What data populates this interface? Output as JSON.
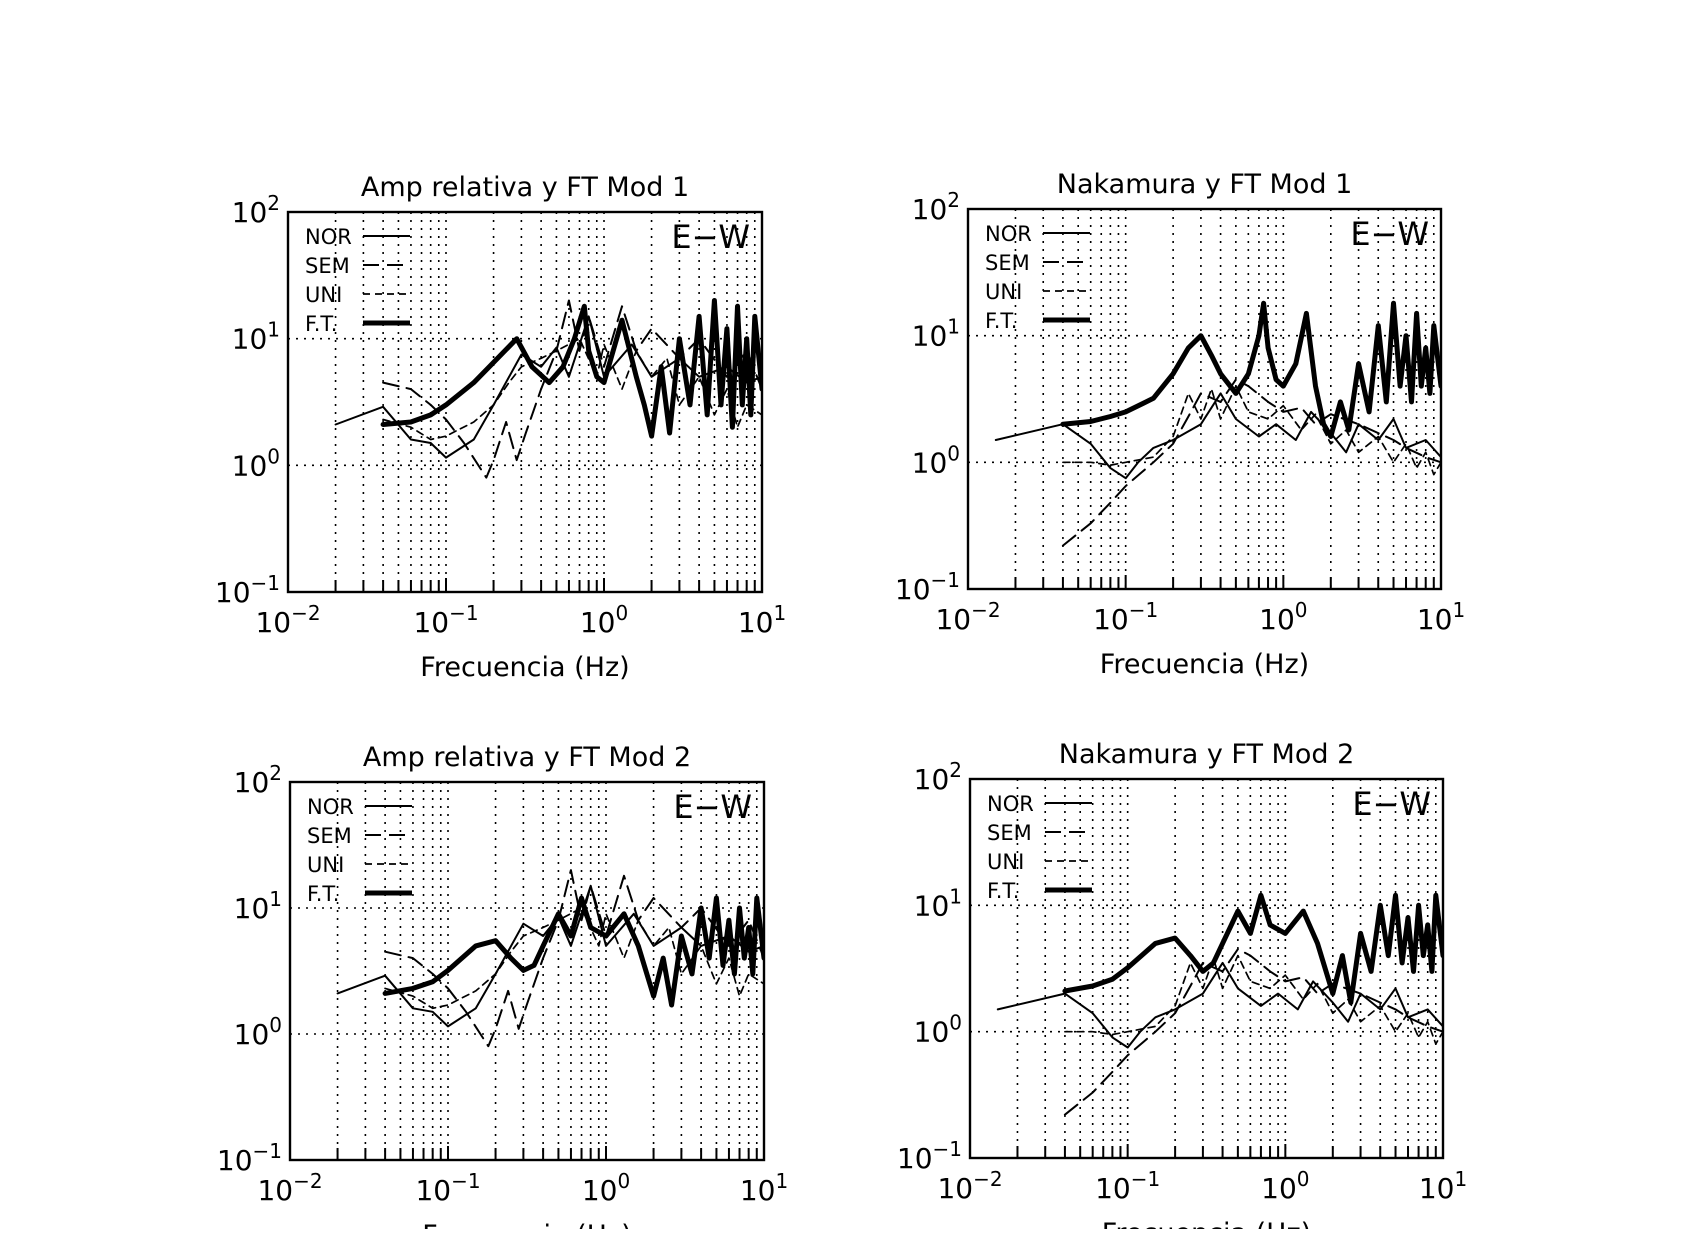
{
  "figure": {
    "charts": [
      {
        "id": "p1",
        "title": "Amp  relativa  y  FT  Mod  1",
        "tag": "E−W"
      },
      {
        "id": "p2",
        "title": "Nakamura  y  FT  Mod  1",
        "tag": "E−W"
      },
      {
        "id": "p3",
        "title": "Amp  relativa  y  FT  Mod  2",
        "tag": "E−W"
      },
      {
        "id": "p4",
        "title": "Nakamura  y  FT  Mod  2",
        "tag": "E−W"
      }
    ],
    "xlabel": "Frecuencia  (Hz)",
    "x_tick_labels": [
      {
        "base": "10",
        "exp": "−2"
      },
      {
        "base": "10",
        "exp": "−1"
      },
      {
        "base": "10",
        "exp": "0"
      },
      {
        "base": "10",
        "exp": "1"
      }
    ],
    "y_tick_labels": [
      {
        "base": "10",
        "exp": "−1"
      },
      {
        "base": "10",
        "exp": "0"
      },
      {
        "base": "10",
        "exp": "1"
      },
      {
        "base": "10",
        "exp": "2"
      }
    ],
    "legend": [
      {
        "label": "NOR",
        "style": "solid-thin"
      },
      {
        "label": "SEM",
        "style": "long-dash"
      },
      {
        "label": "UNI",
        "style": "short-dash"
      },
      {
        "label": "F.T.",
        "style": "solid-thick"
      }
    ]
  },
  "chart_data": [
    {
      "type": "line",
      "title": "Amp  relativa  y  FT  Mod  1",
      "xlabel": "Frecuencia  (Hz)",
      "ylabel": "",
      "xscale": "log",
      "yscale": "log",
      "xlim": [
        0.01,
        10
      ],
      "ylim": [
        0.1,
        100
      ],
      "grid": true,
      "legend_position": "top-left",
      "annotation": "E−W",
      "series": [
        {
          "name": "NOR",
          "x": [
            0.02,
            0.04,
            0.06,
            0.08,
            0.1,
            0.15,
            0.2,
            0.3,
            0.4,
            0.5,
            0.6,
            0.8,
            1.0,
            1.5,
            2.0,
            3.0,
            4.0,
            6.0,
            8.0,
            10.0
          ],
          "y": [
            2.1,
            2.9,
            1.6,
            1.5,
            1.15,
            1.6,
            3.0,
            7.5,
            6.0,
            8.5,
            5.0,
            15.0,
            5.0,
            9.0,
            5.0,
            7.0,
            5.0,
            6.0,
            4.5,
            5.0
          ]
        },
        {
          "name": "SEM",
          "x": [
            0.04,
            0.06,
            0.08,
            0.1,
            0.13,
            0.18,
            0.2,
            0.24,
            0.28,
            0.32,
            0.4,
            0.5,
            0.6,
            0.7,
            0.8,
            1.0,
            1.3,
            1.6,
            2.0,
            3.0,
            4.0,
            6.0,
            8.0,
            10.0
          ],
          "y": [
            4.5,
            4.0,
            3.0,
            2.3,
            1.5,
            0.8,
            1.1,
            2.2,
            1.1,
            1.8,
            4.0,
            8.0,
            20.0,
            8.0,
            15.0,
            6.0,
            18.0,
            8.0,
            12.0,
            7.0,
            10.0,
            5.0,
            8.0,
            4.0
          ]
        },
        {
          "name": "UNI",
          "x": [
            0.04,
            0.06,
            0.08,
            0.1,
            0.15,
            0.2,
            0.25,
            0.3,
            0.4,
            0.5,
            0.7,
            0.9,
            1.0,
            1.3,
            1.6,
            2.0,
            2.5,
            3.0,
            4.0,
            5.0,
            6.0,
            7.0,
            8.0,
            10.0
          ],
          "y": [
            2.3,
            2.0,
            1.6,
            1.7,
            2.2,
            3.0,
            4.5,
            6.0,
            7.0,
            8.0,
            10.0,
            5.0,
            9.0,
            4.0,
            8.0,
            5.0,
            7.0,
            3.0,
            5.0,
            2.5,
            4.0,
            2.0,
            3.0,
            2.5
          ]
        },
        {
          "name": "F.T.",
          "x": [
            0.04,
            0.06,
            0.08,
            0.1,
            0.15,
            0.2,
            0.28,
            0.35,
            0.45,
            0.55,
            0.65,
            0.75,
            0.8,
            0.9,
            1.0,
            1.3,
            1.6,
            1.8,
            2.0,
            2.3,
            2.6,
            3.0,
            3.5,
            4.0,
            4.5,
            5.0,
            5.5,
            6.0,
            6.5,
            7.0,
            7.5,
            8.0,
            8.5,
            9.0,
            10.0
          ],
          "y": [
            2.1,
            2.2,
            2.5,
            3.0,
            4.5,
            6.5,
            10.0,
            6.0,
            4.5,
            6.0,
            10.0,
            18.0,
            8.0,
            5.0,
            4.5,
            14.0,
            5.0,
            3.0,
            1.7,
            6.0,
            1.8,
            10.0,
            3.0,
            15.0,
            2.5,
            20.0,
            3.0,
            12.0,
            2.0,
            18.0,
            3.0,
            10.0,
            2.5,
            15.0,
            4.0
          ]
        }
      ]
    },
    {
      "type": "line",
      "title": "Nakamura  y  FT  Mod  1",
      "xlabel": "Frecuencia  (Hz)",
      "ylabel": "",
      "xscale": "log",
      "yscale": "log",
      "xlim": [
        0.01,
        10
      ],
      "ylim": [
        0.1,
        100
      ],
      "grid": true,
      "legend_position": "top-left",
      "annotation": "E−W",
      "series": [
        {
          "name": "NOR",
          "x": [
            0.015,
            0.04,
            0.06,
            0.08,
            0.1,
            0.12,
            0.15,
            0.2,
            0.3,
            0.4,
            0.5,
            0.7,
            0.9,
            1.2,
            1.5,
            2.0,
            2.5,
            3.0,
            4.0,
            5.0,
            6.0,
            8.0,
            10.0
          ],
          "y": [
            1.5,
            2.0,
            1.4,
            0.9,
            0.75,
            1.0,
            1.3,
            1.5,
            2.0,
            3.5,
            2.2,
            1.6,
            2.0,
            1.5,
            2.5,
            1.7,
            1.2,
            2.0,
            1.5,
            2.2,
            1.3,
            1.5,
            1.1
          ]
        },
        {
          "name": "SEM",
          "x": [
            0.04,
            0.06,
            0.08,
            0.1,
            0.15,
            0.2,
            0.25,
            0.3,
            0.4,
            0.5,
            0.6,
            0.8,
            1.0,
            1.3,
            1.6,
            2.0,
            3.0,
            4.0,
            5.0,
            6.0,
            8.0,
            10.0
          ],
          "y": [
            0.22,
            0.33,
            0.48,
            0.65,
            1.0,
            1.4,
            2.3,
            3.5,
            3.0,
            4.5,
            4.0,
            3.0,
            2.5,
            2.7,
            2.0,
            2.4,
            2.0,
            1.7,
            1.5,
            1.3,
            1.1,
            1.0
          ]
        },
        {
          "name": "UNI",
          "x": [
            0.04,
            0.06,
            0.08,
            0.1,
            0.15,
            0.2,
            0.25,
            0.3,
            0.35,
            0.4,
            0.5,
            0.6,
            0.8,
            1.0,
            1.3,
            1.6,
            2.0,
            2.5,
            3.0,
            4.0,
            5.0,
            6.0,
            7.0,
            8.0,
            9.0,
            10.0
          ],
          "y": [
            1.0,
            1.0,
            0.95,
            1.0,
            1.1,
            1.6,
            3.5,
            2.2,
            3.8,
            2.2,
            4.0,
            2.5,
            2.2,
            2.8,
            1.8,
            2.4,
            1.4,
            1.8,
            1.2,
            1.6,
            1.0,
            1.4,
            0.9,
            1.2,
            0.8,
            1.0
          ]
        },
        {
          "name": "F.T.",
          "x": [
            0.04,
            0.06,
            0.08,
            0.1,
            0.15,
            0.2,
            0.25,
            0.3,
            0.35,
            0.4,
            0.5,
            0.6,
            0.7,
            0.75,
            0.8,
            0.9,
            1.0,
            1.2,
            1.4,
            1.6,
            1.8,
            2.0,
            2.3,
            2.6,
            3.0,
            3.5,
            4.0,
            4.5,
            5.0,
            5.5,
            6.0,
            6.5,
            7.0,
            7.5,
            8.0,
            8.5,
            9.0,
            10.0
          ],
          "y": [
            2.0,
            2.1,
            2.3,
            2.5,
            3.2,
            5.0,
            8.0,
            10.0,
            7.0,
            5.0,
            3.5,
            5.0,
            10.0,
            18.0,
            8.0,
            4.5,
            4.0,
            6.0,
            15.0,
            4.0,
            2.0,
            1.6,
            3.0,
            1.8,
            6.0,
            2.5,
            12.0,
            3.0,
            18.0,
            4.0,
            10.0,
            3.0,
            15.0,
            4.0,
            8.0,
            3.5,
            12.0,
            4.0
          ]
        }
      ]
    },
    {
      "type": "line",
      "title": "Amp  relativa  y  FT  Mod  2",
      "xlabel": "Frecuencia  (Hz)",
      "ylabel": "",
      "xscale": "log",
      "yscale": "log",
      "xlim": [
        0.01,
        10
      ],
      "ylim": [
        0.1,
        100
      ],
      "grid": true,
      "legend_position": "top-left",
      "annotation": "E−W",
      "series": [
        {
          "name": "NOR",
          "x": [
            0.02,
            0.04,
            0.06,
            0.08,
            0.1,
            0.15,
            0.2,
            0.3,
            0.4,
            0.5,
            0.6,
            0.8,
            1.0,
            1.5,
            2.0,
            3.0,
            4.0,
            6.0,
            8.0,
            10.0
          ],
          "y": [
            2.1,
            2.9,
            1.6,
            1.5,
            1.15,
            1.6,
            3.0,
            7.5,
            6.0,
            8.5,
            5.0,
            15.0,
            5.0,
            9.0,
            5.0,
            7.0,
            5.0,
            6.0,
            4.5,
            5.0
          ]
        },
        {
          "name": "SEM",
          "x": [
            0.04,
            0.06,
            0.08,
            0.1,
            0.13,
            0.18,
            0.2,
            0.24,
            0.28,
            0.32,
            0.4,
            0.5,
            0.6,
            0.7,
            0.8,
            1.0,
            1.3,
            1.6,
            2.0,
            3.0,
            4.0,
            6.0,
            8.0,
            10.0
          ],
          "y": [
            4.5,
            4.0,
            3.0,
            2.3,
            1.5,
            0.8,
            1.1,
            2.2,
            1.1,
            1.8,
            4.0,
            8.0,
            20.0,
            8.0,
            15.0,
            6.0,
            18.0,
            8.0,
            12.0,
            7.0,
            10.0,
            5.0,
            8.0,
            4.0
          ]
        },
        {
          "name": "UNI",
          "x": [
            0.04,
            0.06,
            0.08,
            0.1,
            0.15,
            0.2,
            0.25,
            0.3,
            0.4,
            0.5,
            0.7,
            0.9,
            1.0,
            1.3,
            1.6,
            2.0,
            2.5,
            3.0,
            4.0,
            5.0,
            6.0,
            7.0,
            8.0,
            10.0
          ],
          "y": [
            2.3,
            2.0,
            1.6,
            1.7,
            2.2,
            3.0,
            4.5,
            6.0,
            7.0,
            8.0,
            10.0,
            5.0,
            9.0,
            4.0,
            8.0,
            5.0,
            7.0,
            3.0,
            5.0,
            2.5,
            4.0,
            2.0,
            3.0,
            2.5
          ]
        },
        {
          "name": "F.T.",
          "x": [
            0.04,
            0.06,
            0.08,
            0.1,
            0.15,
            0.2,
            0.25,
            0.3,
            0.35,
            0.4,
            0.5,
            0.6,
            0.7,
            0.8,
            1.0,
            1.3,
            1.6,
            2.0,
            2.3,
            2.6,
            3.0,
            3.5,
            4.0,
            4.5,
            5.0,
            5.5,
            6.0,
            6.5,
            7.0,
            7.5,
            8.0,
            8.5,
            9.0,
            10.0
          ],
          "y": [
            2.1,
            2.3,
            2.6,
            3.2,
            5.0,
            5.5,
            4.0,
            3.2,
            3.5,
            5.0,
            9.0,
            6.0,
            12.0,
            7.0,
            6.0,
            9.0,
            5.0,
            2.0,
            4.0,
            1.7,
            6.0,
            3.0,
            10.0,
            4.0,
            12.0,
            3.5,
            8.0,
            3.0,
            10.0,
            4.0,
            7.0,
            3.0,
            12.0,
            4.0
          ]
        }
      ]
    },
    {
      "type": "line",
      "title": "Nakamura  y  FT  Mod  2",
      "xlabel": "Frecuencia  (Hz)",
      "ylabel": "",
      "xscale": "log",
      "yscale": "log",
      "xlim": [
        0.01,
        10
      ],
      "ylim": [
        0.1,
        100
      ],
      "grid": true,
      "legend_position": "top-left",
      "annotation": "E−W",
      "series": [
        {
          "name": "NOR",
          "x": [
            0.015,
            0.04,
            0.06,
            0.08,
            0.1,
            0.12,
            0.15,
            0.2,
            0.3,
            0.4,
            0.5,
            0.7,
            0.9,
            1.2,
            1.5,
            2.0,
            2.5,
            3.0,
            4.0,
            5.0,
            6.0,
            8.0,
            10.0
          ],
          "y": [
            1.5,
            2.0,
            1.4,
            0.9,
            0.75,
            1.0,
            1.3,
            1.5,
            2.0,
            3.5,
            2.2,
            1.6,
            2.0,
            1.5,
            2.5,
            1.7,
            1.2,
            2.0,
            1.5,
            2.2,
            1.3,
            1.5,
            1.1
          ]
        },
        {
          "name": "SEM",
          "x": [
            0.04,
            0.06,
            0.08,
            0.1,
            0.15,
            0.2,
            0.25,
            0.3,
            0.4,
            0.5,
            0.6,
            0.8,
            1.0,
            1.3,
            1.6,
            2.0,
            3.0,
            4.0,
            5.0,
            6.0,
            8.0,
            10.0
          ],
          "y": [
            0.22,
            0.33,
            0.48,
            0.65,
            1.0,
            1.4,
            2.3,
            3.5,
            3.0,
            4.5,
            4.0,
            3.0,
            2.5,
            2.7,
            2.0,
            2.4,
            2.0,
            1.7,
            1.5,
            1.3,
            1.1,
            1.0
          ]
        },
        {
          "name": "UNI",
          "x": [
            0.04,
            0.06,
            0.08,
            0.1,
            0.15,
            0.2,
            0.25,
            0.3,
            0.35,
            0.4,
            0.5,
            0.6,
            0.8,
            1.0,
            1.3,
            1.6,
            2.0,
            2.5,
            3.0,
            4.0,
            5.0,
            6.0,
            7.0,
            8.0,
            9.0,
            10.0
          ],
          "y": [
            1.0,
            1.0,
            0.95,
            1.0,
            1.1,
            1.6,
            3.5,
            2.2,
            3.8,
            2.2,
            4.0,
            2.5,
            2.2,
            2.8,
            1.8,
            2.4,
            1.4,
            1.8,
            1.2,
            1.6,
            1.0,
            1.4,
            0.9,
            1.2,
            0.8,
            1.0
          ]
        },
        {
          "name": "F.T.",
          "x": [
            0.04,
            0.06,
            0.08,
            0.1,
            0.15,
            0.2,
            0.25,
            0.3,
            0.35,
            0.4,
            0.5,
            0.6,
            0.7,
            0.8,
            1.0,
            1.3,
            1.6,
            2.0,
            2.3,
            2.6,
            3.0,
            3.5,
            4.0,
            4.5,
            5.0,
            5.5,
            6.0,
            6.5,
            7.0,
            7.5,
            8.0,
            8.5,
            9.0,
            10.0
          ],
          "y": [
            2.1,
            2.3,
            2.6,
            3.2,
            5.0,
            5.5,
            4.0,
            3.0,
            3.5,
            5.0,
            9.0,
            6.0,
            12.0,
            7.0,
            6.0,
            9.0,
            5.0,
            2.0,
            4.0,
            1.7,
            6.0,
            3.0,
            10.0,
            4.0,
            12.0,
            3.5,
            8.0,
            3.0,
            10.0,
            4.0,
            7.0,
            3.0,
            12.0,
            4.0
          ]
        }
      ]
    }
  ]
}
